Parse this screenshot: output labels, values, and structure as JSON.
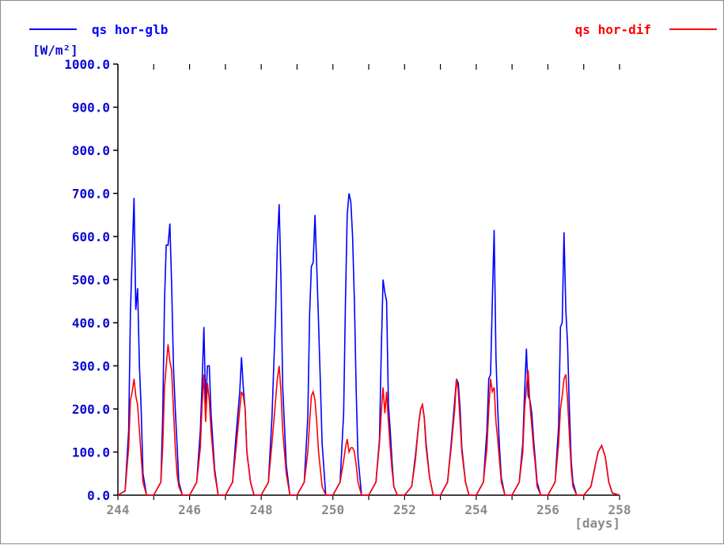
{
  "chart_data": {
    "type": "line",
    "title": "",
    "xlabel": "[days]",
    "ylabel": "[W/m²]",
    "xlim": [
      244,
      258
    ],
    "ylim": [
      0,
      1000
    ],
    "x_ticks": [
      "244",
      "246",
      "248",
      "250",
      "252",
      "254",
      "256",
      "258"
    ],
    "y_ticks": [
      "0.0",
      "100.0",
      "200.0",
      "300.0",
      "400.0",
      "500.0",
      "600.0",
      "700.0",
      "800.0",
      "900.0",
      "1000.0"
    ],
    "legend_placement": "top (left and right)",
    "grid": false,
    "series": [
      {
        "name": "qs hor-glb",
        "color": "#0000ff",
        "legend_side": "left",
        "x": [
          244.0,
          244.2,
          244.3,
          244.35,
          244.4,
          244.45,
          244.5,
          244.55,
          244.6,
          244.65,
          244.7,
          244.8,
          245.0,
          245.2,
          245.25,
          245.3,
          245.35,
          245.4,
          245.45,
          245.5,
          245.55,
          245.6,
          245.65,
          245.7,
          245.8,
          246.0,
          246.2,
          246.3,
          246.35,
          246.4,
          246.45,
          246.5,
          246.55,
          246.6,
          246.7,
          246.8,
          247.0,
          247.2,
          247.3,
          247.4,
          247.45,
          247.5,
          247.55,
          247.6,
          247.7,
          247.8,
          248.0,
          248.2,
          248.3,
          248.4,
          248.45,
          248.5,
          248.55,
          248.6,
          248.7,
          248.8,
          249.0,
          249.2,
          249.3,
          249.35,
          249.4,
          249.45,
          249.5,
          249.55,
          249.6,
          249.65,
          249.7,
          249.8,
          250.0,
          250.2,
          250.3,
          250.35,
          250.4,
          250.45,
          250.5,
          250.55,
          250.6,
          250.65,
          250.7,
          250.8,
          251.0,
          251.2,
          251.3,
          251.35,
          251.4,
          251.45,
          251.5,
          251.55,
          251.6,
          251.65,
          251.7,
          251.8,
          252.0,
          252.2,
          252.3,
          252.4,
          252.45,
          252.5,
          252.55,
          252.6,
          252.7,
          252.8,
          253.0,
          253.2,
          253.3,
          253.4,
          253.45,
          253.5,
          253.55,
          253.6,
          253.7,
          253.8,
          254.0,
          254.2,
          254.3,
          254.35,
          254.4,
          254.45,
          254.5,
          254.55,
          254.6,
          254.65,
          254.7,
          254.8,
          255.0,
          255.2,
          255.3,
          255.35,
          255.4,
          255.45,
          255.5,
          255.55,
          255.6,
          255.65,
          255.7,
          255.8,
          256.0,
          256.2,
          256.3,
          256.35,
          256.4,
          256.45,
          256.5,
          256.55,
          256.6,
          256.65,
          256.7,
          256.8,
          257.0,
          257.2,
          257.3,
          257.4,
          257.5,
          257.6,
          257.7,
          257.8,
          258.0
        ],
        "y": [
          0,
          10,
          150,
          420,
          560,
          690,
          430,
          480,
          300,
          200,
          50,
          0,
          0,
          30,
          180,
          450,
          580,
          580,
          630,
          490,
          300,
          200,
          120,
          30,
          0,
          0,
          30,
          150,
          260,
          390,
          210,
          300,
          300,
          190,
          60,
          0,
          0,
          30,
          140,
          240,
          320,
          250,
          200,
          100,
          30,
          0,
          0,
          30,
          180,
          420,
          580,
          675,
          500,
          250,
          70,
          0,
          0,
          30,
          180,
          420,
          530,
          540,
          650,
          530,
          400,
          260,
          120,
          0,
          0,
          30,
          190,
          450,
          650,
          700,
          680,
          600,
          450,
          240,
          90,
          0,
          0,
          30,
          130,
          330,
          500,
          470,
          450,
          210,
          150,
          80,
          20,
          0,
          0,
          20,
          90,
          170,
          200,
          210,
          180,
          120,
          40,
          0,
          0,
          30,
          120,
          220,
          270,
          260,
          200,
          110,
          30,
          0,
          0,
          30,
          150,
          270,
          280,
          450,
          615,
          320,
          200,
          110,
          40,
          0,
          0,
          30,
          120,
          240,
          340,
          230,
          220,
          190,
          130,
          80,
          30,
          0,
          0,
          30,
          160,
          390,
          400,
          610,
          430,
          350,
          200,
          80,
          30,
          0,
          0,
          20,
          60,
          100,
          115,
          90,
          30,
          5,
          0
        ]
      },
      {
        "name": "qs hor-dif",
        "color": "#ff0000",
        "legend_side": "right",
        "x": [
          244.0,
          244.2,
          244.3,
          244.35,
          244.4,
          244.45,
          244.5,
          244.55,
          244.6,
          244.65,
          244.7,
          244.8,
          245.0,
          245.2,
          245.25,
          245.3,
          245.35,
          245.4,
          245.45,
          245.5,
          245.55,
          245.6,
          245.65,
          245.7,
          245.8,
          246.0,
          246.2,
          246.3,
          246.35,
          246.4,
          246.45,
          246.5,
          246.55,
          246.6,
          246.7,
          246.8,
          247.0,
          247.2,
          247.3,
          247.4,
          247.45,
          247.5,
          247.55,
          247.6,
          247.7,
          247.8,
          248.0,
          248.2,
          248.3,
          248.4,
          248.45,
          248.5,
          248.55,
          248.6,
          248.7,
          248.8,
          249.0,
          249.2,
          249.3,
          249.35,
          249.4,
          249.45,
          249.5,
          249.55,
          249.6,
          249.65,
          249.7,
          249.8,
          250.0,
          250.2,
          250.3,
          250.35,
          250.4,
          250.45,
          250.5,
          250.55,
          250.6,
          250.65,
          250.7,
          250.8,
          251.0,
          251.2,
          251.3,
          251.35,
          251.4,
          251.45,
          251.5,
          251.55,
          251.6,
          251.65,
          251.7,
          251.8,
          252.0,
          252.2,
          252.3,
          252.4,
          252.45,
          252.5,
          252.55,
          252.6,
          252.7,
          252.8,
          253.0,
          253.2,
          253.3,
          253.4,
          253.45,
          253.5,
          253.55,
          253.6,
          253.7,
          253.8,
          254.0,
          254.2,
          254.3,
          254.35,
          254.4,
          254.45,
          254.5,
          254.55,
          254.6,
          254.65,
          254.7,
          254.8,
          255.0,
          255.2,
          255.3,
          255.35,
          255.4,
          255.45,
          255.5,
          255.55,
          255.6,
          255.65,
          255.7,
          255.8,
          256.0,
          256.2,
          256.3,
          256.35,
          256.4,
          256.45,
          256.5,
          256.55,
          256.6,
          256.65,
          256.7,
          256.8,
          257.0,
          257.2,
          257.3,
          257.4,
          257.5,
          257.6,
          257.7,
          257.8,
          258.0
        ],
        "y": [
          0,
          10,
          110,
          220,
          240,
          270,
          230,
          210,
          150,
          90,
          30,
          0,
          0,
          30,
          110,
          250,
          300,
          350,
          310,
          290,
          200,
          110,
          50,
          20,
          0,
          0,
          30,
          110,
          210,
          280,
          170,
          260,
          220,
          150,
          50,
          0,
          0,
          30,
          110,
          200,
          240,
          230,
          200,
          100,
          30,
          0,
          0,
          30,
          120,
          220,
          270,
          300,
          240,
          150,
          50,
          0,
          0,
          30,
          100,
          170,
          230,
          240,
          220,
          170,
          100,
          60,
          20,
          0,
          0,
          30,
          80,
          110,
          130,
          100,
          110,
          110,
          100,
          70,
          30,
          0,
          0,
          30,
          120,
          190,
          250,
          190,
          240,
          170,
          110,
          60,
          20,
          0,
          0,
          20,
          80,
          170,
          200,
          210,
          180,
          110,
          40,
          0,
          0,
          30,
          110,
          200,
          270,
          240,
          170,
          100,
          30,
          0,
          0,
          30,
          110,
          200,
          270,
          240,
          250,
          170,
          130,
          80,
          30,
          0,
          0,
          30,
          100,
          200,
          250,
          290,
          210,
          160,
          110,
          70,
          20,
          0,
          0,
          30,
          120,
          200,
          230,
          270,
          280,
          220,
          140,
          60,
          20,
          0,
          0,
          20,
          60,
          100,
          115,
          90,
          30,
          5,
          0
        ]
      }
    ]
  }
}
